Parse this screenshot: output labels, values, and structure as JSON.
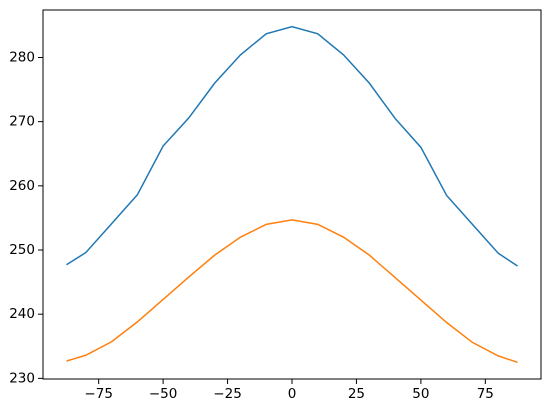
{
  "chart_data": {
    "type": "line",
    "x": [
      -87.5,
      -80,
      -70,
      -60,
      -50,
      -40,
      -30,
      -20,
      -10,
      0,
      10,
      20,
      30,
      40,
      50,
      60,
      70,
      80,
      87.5
    ],
    "series": [
      {
        "color": "#1f77b4",
        "values": [
          247.7,
          249.6,
          254.1,
          258.6,
          266.2,
          270.6,
          276.0,
          280.4,
          283.7,
          284.8,
          283.7,
          280.4,
          276.0,
          270.5,
          266.0,
          258.5,
          254.0,
          249.5,
          247.5
        ]
      },
      {
        "color": "#ff7f0e",
        "values": [
          232.7,
          233.6,
          235.7,
          238.8,
          242.3,
          245.8,
          249.2,
          252.0,
          254.0,
          254.7,
          254.0,
          252.0,
          249.2,
          245.7,
          242.2,
          238.7,
          235.6,
          233.5,
          232.5
        ]
      }
    ],
    "xlim": [
      -96.6,
      96.6
    ],
    "ylim": [
      229.9,
      287.4
    ],
    "xticks": [
      {
        "value": -75,
        "label": "−75"
      },
      {
        "value": -50,
        "label": "−50"
      },
      {
        "value": -25,
        "label": "−25"
      },
      0,
      25,
      50,
      75
    ],
    "yticks": [
      230,
      240,
      250,
      260,
      270,
      280
    ]
  }
}
